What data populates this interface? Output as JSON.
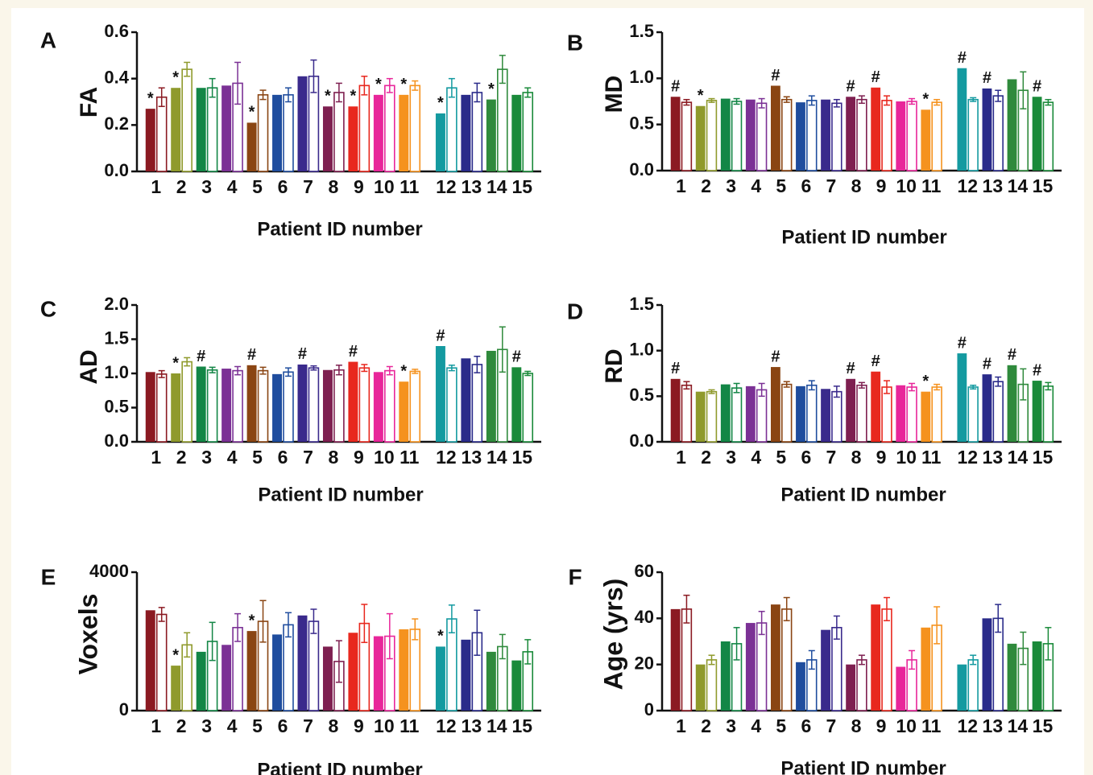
{
  "palette": [
    "#8b1a22",
    "#8f9a2c",
    "#138646",
    "#7b3195",
    "#8a4513",
    "#1f4d9e",
    "#3a2a8c",
    "#7e1f50",
    "#e8281e",
    "#e8269a",
    "#f5921e",
    "#149aa0",
    "#2a2b8a",
    "#2f8a3c",
    "#1a8a3a"
  ],
  "chart_data": [
    {
      "panel": "A",
      "type": "bar",
      "ylabel": "FA",
      "xlabel": "Patient ID number",
      "ylim": [
        0,
        0.6
      ],
      "yticks": [
        "0.0",
        "0.2",
        "0.4",
        "0.6"
      ],
      "categories": [
        "1",
        "2",
        "3",
        "4",
        "5",
        "6",
        "7",
        "8",
        "9",
        "10",
        "11",
        "12",
        "13",
        "14",
        "15"
      ],
      "series": [
        {
          "values": [
            0.27,
            0.36,
            0.36,
            0.37,
            0.21,
            0.33,
            0.41,
            0.28,
            0.28,
            0.33,
            0.33,
            0.25,
            0.33,
            0.31,
            0.33
          ]
        },
        {
          "values": [
            0.32,
            0.44,
            0.36,
            0.38,
            0.33,
            0.33,
            0.41,
            0.34,
            0.37,
            0.37,
            0.37,
            0.36,
            0.34,
            0.44,
            0.34
          ],
          "errors": [
            0.04,
            0.03,
            0.04,
            0.09,
            0.02,
            0.03,
            0.07,
            0.04,
            0.04,
            0.03,
            0.02,
            0.04,
            0.04,
            0.06,
            0.02
          ]
        }
      ],
      "markers": [
        {
          "index": 0,
          "symbol": "*"
        },
        {
          "index": 1,
          "symbol": "*"
        },
        {
          "index": 4,
          "symbol": "*"
        },
        {
          "index": 7,
          "symbol": "*"
        },
        {
          "index": 8,
          "symbol": "*"
        },
        {
          "index": 9,
          "symbol": "*"
        },
        {
          "index": 10,
          "symbol": "*"
        },
        {
          "index": 11,
          "symbol": "*"
        },
        {
          "index": 13,
          "symbol": "*"
        }
      ]
    },
    {
      "panel": "B",
      "type": "bar",
      "ylabel": "MD",
      "xlabel": "Patient ID number",
      "ylim": [
        0,
        1.5
      ],
      "yticks": [
        "0.0",
        "0.5",
        "1.0",
        "1.5"
      ],
      "categories": [
        "1",
        "2",
        "3",
        "4",
        "5",
        "6",
        "7",
        "8",
        "9",
        "10",
        "11",
        "12",
        "13",
        "14",
        "15"
      ],
      "series": [
        {
          "values": [
            0.8,
            0.7,
            0.78,
            0.77,
            0.92,
            0.74,
            0.77,
            0.8,
            0.9,
            0.75,
            0.66,
            1.11,
            0.89,
            0.99,
            0.8
          ]
        },
        {
          "values": [
            0.74,
            0.76,
            0.75,
            0.73,
            0.77,
            0.76,
            0.73,
            0.77,
            0.76,
            0.75,
            0.74,
            0.77,
            0.81,
            0.87,
            0.74
          ],
          "errors": [
            0.03,
            0.02,
            0.03,
            0.05,
            0.03,
            0.05,
            0.04,
            0.04,
            0.05,
            0.03,
            0.03,
            0.02,
            0.06,
            0.2,
            0.03
          ]
        }
      ],
      "markers": [
        {
          "index": 0,
          "symbol": "#"
        },
        {
          "index": 1,
          "symbol": "*"
        },
        {
          "index": 4,
          "symbol": "#"
        },
        {
          "index": 7,
          "symbol": "#"
        },
        {
          "index": 8,
          "symbol": "#"
        },
        {
          "index": 10,
          "symbol": "*"
        },
        {
          "index": 11,
          "symbol": "#"
        },
        {
          "index": 12,
          "symbol": "#"
        },
        {
          "index": 14,
          "symbol": "#"
        }
      ]
    },
    {
      "panel": "C",
      "type": "bar",
      "ylabel": "AD",
      "xlabel": "Patient ID number",
      "ylim": [
        0,
        2.0
      ],
      "yticks": [
        "0.0",
        "0.5",
        "1.0",
        "1.5",
        "2.0"
      ],
      "categories": [
        "1",
        "2",
        "3",
        "4",
        "5",
        "6",
        "7",
        "8",
        "9",
        "10",
        "11",
        "12",
        "13",
        "14",
        "15"
      ],
      "series": [
        {
          "values": [
            1.02,
            1.0,
            1.1,
            1.07,
            1.12,
            0.99,
            1.13,
            1.05,
            1.17,
            1.02,
            0.88,
            1.4,
            1.22,
            1.33,
            1.09
          ]
        },
        {
          "values": [
            0.99,
            1.17,
            1.05,
            1.04,
            1.04,
            1.02,
            1.08,
            1.05,
            1.08,
            1.04,
            1.03,
            1.08,
            1.13,
            1.35,
            1.0
          ],
          "errors": [
            0.05,
            0.06,
            0.04,
            0.06,
            0.05,
            0.06,
            0.03,
            0.07,
            0.05,
            0.06,
            0.03,
            0.04,
            0.12,
            0.33,
            0.03
          ]
        }
      ],
      "markers": [
        {
          "index": 1,
          "symbol": "*"
        },
        {
          "index": 2,
          "symbol": "#"
        },
        {
          "index": 4,
          "symbol": "#"
        },
        {
          "index": 6,
          "symbol": "#"
        },
        {
          "index": 8,
          "symbol": "#"
        },
        {
          "index": 10,
          "symbol": "*"
        },
        {
          "index": 11,
          "symbol": "#"
        },
        {
          "index": 14,
          "symbol": "#"
        }
      ]
    },
    {
      "panel": "D",
      "type": "bar",
      "ylabel": "RD",
      "xlabel": "Patient ID number",
      "ylim": [
        0,
        1.5
      ],
      "yticks": [
        "0.0",
        "0.5",
        "1.0",
        "1.5"
      ],
      "categories": [
        "1",
        "2",
        "3",
        "4",
        "5",
        "6",
        "7",
        "8",
        "9",
        "10",
        "11",
        "12",
        "13",
        "14",
        "15"
      ],
      "series": [
        {
          "values": [
            0.69,
            0.55,
            0.63,
            0.61,
            0.82,
            0.61,
            0.58,
            0.69,
            0.77,
            0.62,
            0.55,
            0.97,
            0.74,
            0.84,
            0.67
          ]
        },
        {
          "values": [
            0.62,
            0.55,
            0.59,
            0.57,
            0.63,
            0.62,
            0.55,
            0.62,
            0.6,
            0.6,
            0.6,
            0.6,
            0.66,
            0.63,
            0.61
          ],
          "errors": [
            0.04,
            0.02,
            0.05,
            0.07,
            0.03,
            0.05,
            0.06,
            0.03,
            0.07,
            0.04,
            0.03,
            0.02,
            0.05,
            0.17,
            0.04
          ]
        }
      ],
      "markers": [
        {
          "index": 0,
          "symbol": "#"
        },
        {
          "index": 4,
          "symbol": "#"
        },
        {
          "index": 7,
          "symbol": "#"
        },
        {
          "index": 8,
          "symbol": "#"
        },
        {
          "index": 10,
          "symbol": "*"
        },
        {
          "index": 11,
          "symbol": "#"
        },
        {
          "index": 12,
          "symbol": "#"
        },
        {
          "index": 13,
          "symbol": "#"
        },
        {
          "index": 14,
          "symbol": "#"
        }
      ]
    },
    {
      "panel": "E",
      "type": "bar",
      "ylabel": "Voxels",
      "xlabel": "Patient ID number",
      "ylim": [
        0,
        4000
      ],
      "yticks": [
        "0",
        "4000"
      ],
      "categories": [
        "1",
        "2",
        "3",
        "4",
        "5",
        "6",
        "7",
        "8",
        "9",
        "10",
        "11",
        "12",
        "13",
        "14",
        "15"
      ],
      "series": [
        {
          "values": [
            2900,
            1300,
            1700,
            1900,
            2300,
            2200,
            2750,
            1850,
            2250,
            2150,
            2350,
            1850,
            2050,
            1700,
            1450
          ]
        },
        {
          "values": [
            2780,
            1900,
            2000,
            2400,
            2580,
            2480,
            2580,
            1420,
            2520,
            2150,
            2350,
            2650,
            2250,
            1850,
            1700
          ],
          "errors": [
            200,
            350,
            550,
            400,
            600,
            350,
            350,
            600,
            550,
            650,
            300,
            400,
            650,
            350,
            350
          ]
        }
      ],
      "markers": [
        {
          "index": 1,
          "symbol": "*"
        },
        {
          "index": 4,
          "symbol": "*"
        },
        {
          "index": 11,
          "symbol": "*"
        }
      ]
    },
    {
      "panel": "F",
      "type": "bar",
      "ylabel": "Age (yrs)",
      "xlabel": "Patient ID number",
      "ylim": [
        0,
        60
      ],
      "yticks": [
        "0",
        "20",
        "40",
        "60"
      ],
      "categories": [
        "1",
        "2",
        "3",
        "4",
        "5",
        "6",
        "7",
        "8",
        "9",
        "10",
        "11",
        "12",
        "13",
        "14",
        "15"
      ],
      "series": [
        {
          "values": [
            44,
            20,
            30,
            38,
            46,
            21,
            35,
            20,
            46,
            19,
            36,
            20,
            40,
            29,
            30
          ]
        },
        {
          "values": [
            44,
            22,
            29,
            38,
            44,
            22,
            36,
            22,
            44,
            22,
            37,
            22,
            40,
            27,
            29
          ],
          "errors": [
            6,
            2,
            7,
            5,
            5,
            4,
            5,
            2,
            5,
            4,
            8,
            2,
            6,
            7,
            7
          ]
        }
      ],
      "markers": []
    }
  ]
}
